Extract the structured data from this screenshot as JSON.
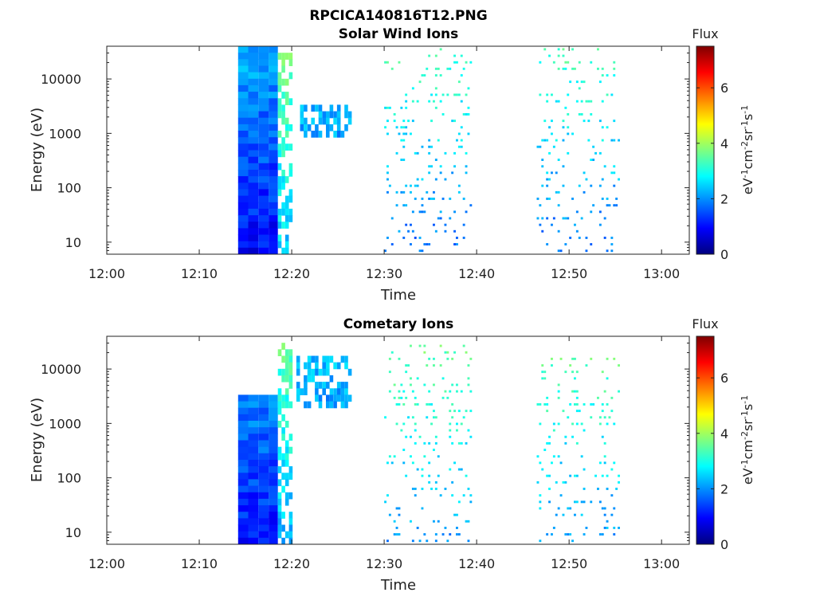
{
  "figure_title": "RPCICA140816T12.PNG",
  "colormap": [
    "#00007f",
    "#0000ff",
    "#007fff",
    "#00ffff",
    "#7fff7f",
    "#ffff00",
    "#ff7f00",
    "#ff0000",
    "#7f0000"
  ],
  "chart_data": [
    {
      "type": "heatmap",
      "title": "Solar Wind Ions",
      "xlabel": "Time",
      "ylabel": "Energy (eV)",
      "x_ticks": [
        "12:00",
        "12:10",
        "12:20",
        "12:30",
        "12:40",
        "12:50",
        "13:00"
      ],
      "x_range_minutes": [
        0,
        63
      ],
      "y_scale": "log",
      "y_ticks": [
        "10",
        "100",
        "1000",
        "10000"
      ],
      "y_range": [
        6,
        40000
      ],
      "colorbar": {
        "title": "Flux",
        "label": "eV-1cm-2sr-1s-1",
        "ticks": [
          "0",
          "2",
          "4",
          "6"
        ],
        "range": [
          0,
          7.5
        ]
      },
      "grid": false,
      "regions": [
        {
          "t_start": 14.2,
          "t_end": 18.5,
          "e_low": 6,
          "e_high": 40000,
          "flux": 0.9,
          "note": "dense block"
        },
        {
          "t_start": 18.5,
          "t_end": 20.1,
          "e_low": 6,
          "e_high": 40000,
          "flux": 2.4
        },
        {
          "t_start": 20.5,
          "t_end": 26.5,
          "e_low": 800,
          "e_high": 3000,
          "flux": 1.4
        },
        {
          "t_start": 30.0,
          "t_end": 39.5,
          "e_low": 6,
          "e_high": 40000,
          "flux": 1.7,
          "note": "sparse"
        },
        {
          "t_start": 46.5,
          "t_end": 55.5,
          "e_low": 6,
          "e_high": 40000,
          "flux": 1.7,
          "note": "sparse"
        }
      ]
    },
    {
      "type": "heatmap",
      "title": "Cometary Ions",
      "xlabel": "Time",
      "ylabel": "Energy (eV)",
      "x_ticks": [
        "12:00",
        "12:10",
        "12:20",
        "12:30",
        "12:40",
        "12:50",
        "13:00"
      ],
      "x_range_minutes": [
        0,
        63
      ],
      "y_scale": "log",
      "y_ticks": [
        "10",
        "100",
        "1000",
        "10000"
      ],
      "y_range": [
        6,
        40000
      ],
      "colorbar": {
        "title": "Flux",
        "label": "eV-1cm-2sr-1s-1",
        "ticks": [
          "0",
          "2",
          "4",
          "6"
        ],
        "range": [
          0,
          7.5
        ]
      },
      "grid": false,
      "regions": [
        {
          "t_start": 14.2,
          "t_end": 18.5,
          "e_low": 6,
          "e_high": 3000,
          "flux": 1.0,
          "note": "dense block"
        },
        {
          "t_start": 18.5,
          "t_end": 20.1,
          "e_low": 6,
          "e_high": 40000,
          "flux": 2.2
        },
        {
          "t_start": 20.5,
          "t_end": 26.5,
          "e_low": 1900,
          "e_high": 20000,
          "flux": 1.2
        },
        {
          "t_start": 30.0,
          "t_end": 39.5,
          "e_low": 6,
          "e_high": 30000,
          "flux": 2.0,
          "note": "sparse"
        },
        {
          "t_start": 46.5,
          "t_end": 55.5,
          "e_low": 6,
          "e_high": 20000,
          "flux": 2.0,
          "note": "sparse"
        }
      ]
    }
  ]
}
